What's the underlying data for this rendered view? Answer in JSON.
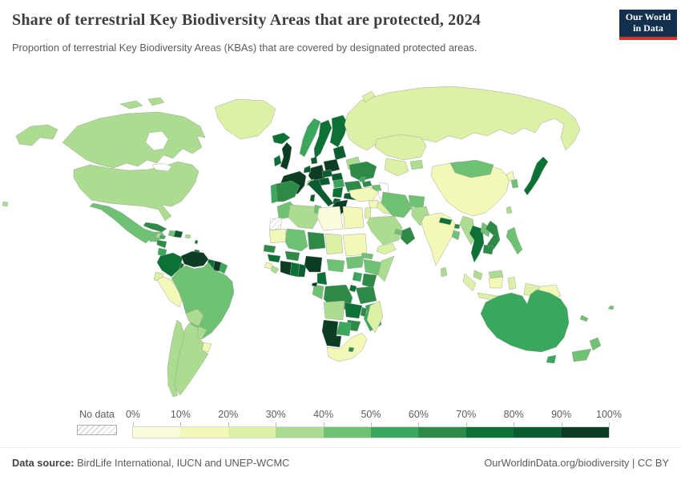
{
  "header": {
    "title": "Share of terrestrial Key Biodiversity Areas that are protected, 2024",
    "subtitle": "Proportion of terrestrial Key Biodiversity Areas (KBAs) that are covered by designated protected areas."
  },
  "logo": {
    "line1": "Our World",
    "line2": "in Data",
    "bg": "#12304e",
    "accent": "#d7352c"
  },
  "legend": {
    "no_data_label": "No data",
    "ticks": [
      "0%",
      "10%",
      "20%",
      "30%",
      "40%",
      "50%",
      "60%",
      "70%",
      "80%",
      "90%",
      "100%"
    ],
    "segment_colors": [
      "#fbfbdd",
      "#f3f8b7",
      "#dcf0a6",
      "#abdc90",
      "#6fc173",
      "#3aa85c",
      "#2e8b47",
      "#0c7134",
      "#0a5c31",
      "#0b3d22"
    ]
  },
  "footer": {
    "source_label": "Data source:",
    "source_text": " BirdLife International, IUCN and UNEP-WCMC",
    "right_text": "OurWorldinData.org/biodiversity | CC BY"
  },
  "chart_data": {
    "type": "heatmap",
    "subtype": "world-choropleth",
    "title": "Share of terrestrial Key Biodiversity Areas that are protected, 2024",
    "unit": "% of terrestrial KBAs covered by protected areas",
    "year": "2024",
    "legend_bins": [
      "0-10%",
      "10-20%",
      "20-30%",
      "30-40%",
      "40-50%",
      "50-60%",
      "60-70%",
      "70-80%",
      "80-90%",
      "90-100%"
    ],
    "no_data_label": "No data",
    "regions_columns": [
      "id",
      "name",
      "protected_share_band"
    ],
    "regions": [
      [
        "alaska",
        "Alaska (United States)",
        "30-40%"
      ],
      [
        "canada",
        "Canada",
        "30-40%"
      ],
      [
        "arctic-islands",
        "Canada (Arctic islands)",
        "30-40%"
      ],
      [
        "greenland",
        "Greenland",
        "20-30%"
      ],
      [
        "usa",
        "United States",
        "30-40%"
      ],
      [
        "hawaii",
        "Hawaii (United States)",
        "30-40%"
      ],
      [
        "mexico",
        "Mexico",
        "40-50%"
      ],
      [
        "belize",
        "Belize",
        "30-40%"
      ],
      [
        "guatemala",
        "Guatemala",
        "40-50%"
      ],
      [
        "honduras",
        "Honduras",
        "60-70%"
      ],
      [
        "nicaragua",
        "Nicaragua",
        "50-60%"
      ],
      [
        "costa-rica",
        "Costa Rica",
        "70-80%"
      ],
      [
        "panama",
        "Panama",
        "70-80%"
      ],
      [
        "cuba",
        "Cuba",
        "60-70%"
      ],
      [
        "jamaica",
        "Jamaica",
        "50-60%"
      ],
      [
        "haiti",
        "Haiti",
        "40-50%"
      ],
      [
        "dominican-republic",
        "Dominican Republic",
        "80-90%"
      ],
      [
        "puerto-rico",
        "Puerto Rico",
        "30-40%"
      ],
      [
        "lesser-antilles",
        "Lesser Antilles",
        "70-80%"
      ],
      [
        "trinidad",
        "Trinidad and Tobago",
        "70-80%"
      ],
      [
        "colombia",
        "Colombia",
        "70-80%"
      ],
      [
        "venezuela",
        "Venezuela",
        "90-100%"
      ],
      [
        "guyana",
        "Guyana",
        "70-80%"
      ],
      [
        "suriname",
        "Suriname",
        "90-100%"
      ],
      [
        "french-guiana",
        "French Guiana",
        "50-60%"
      ],
      [
        "ecuador",
        "Ecuador",
        "20-30%"
      ],
      [
        "peru",
        "Peru",
        "10-20%"
      ],
      [
        "brazil",
        "Brazil",
        "40-50%"
      ],
      [
        "bolivia",
        "Bolivia",
        "30-40%"
      ],
      [
        "paraguay",
        "Paraguay",
        "30-40%"
      ],
      [
        "uruguay",
        "Uruguay",
        "10-20%"
      ],
      [
        "argentina",
        "Argentina",
        "30-40%"
      ],
      [
        "chile",
        "Chile",
        "30-40%"
      ],
      [
        "iceland",
        "Iceland",
        "70-80%"
      ],
      [
        "uk",
        "United Kingdom",
        "90-100%"
      ],
      [
        "ireland",
        "Ireland",
        "70-80%"
      ],
      [
        "norway",
        "Norway",
        "50-60%"
      ],
      [
        "sweden",
        "Sweden",
        "70-80%"
      ],
      [
        "finland",
        "Finland",
        "70-80%"
      ],
      [
        "denmark",
        "Denmark",
        "80-90%"
      ],
      [
        "baltic-states",
        "Baltic states",
        "80-90%"
      ],
      [
        "belarus",
        "Belarus",
        "30-40%"
      ],
      [
        "poland",
        "Poland",
        "90-100%"
      ],
      [
        "germany",
        "Germany",
        "90-100%"
      ],
      [
        "netherlands",
        "Netherlands",
        "80-90%"
      ],
      [
        "france",
        "France",
        "90-100%"
      ],
      [
        "switzerland",
        "Switzerland",
        "30-40%"
      ],
      [
        "czechia",
        "Czechia",
        "80-90%"
      ],
      [
        "austria",
        "Austria",
        "80-90%"
      ],
      [
        "slovakia",
        "Slovakia",
        "80-90%"
      ],
      [
        "hungary",
        "Hungary",
        "50-60%"
      ],
      [
        "ukraine",
        "Ukraine",
        "60-70%"
      ],
      [
        "moldova",
        "Moldova",
        "50-60%"
      ],
      [
        "romania",
        "Romania",
        "60-70%"
      ],
      [
        "serbia",
        "Serbia",
        "70-80%"
      ],
      [
        "bulgaria",
        "Bulgaria",
        "80-90%"
      ],
      [
        "albania-macedonia",
        "Albania / North Macedonia",
        "80-90%"
      ],
      [
        "greece",
        "Greece",
        "90-100%"
      ],
      [
        "italy",
        "Italy",
        "80-90%"
      ],
      [
        "sicily",
        "Italy (Sicily)",
        "80-90%"
      ],
      [
        "sardinia",
        "Italy (Sardinia)",
        "80-90%"
      ],
      [
        "portugal",
        "Portugal",
        "50-60%"
      ],
      [
        "spain",
        "Spain",
        "60-70%"
      ],
      [
        "russia",
        "Russia",
        "20-30%"
      ],
      [
        "novaya-zemlya",
        "Russia (Novaya Zemlya)",
        "20-30%"
      ],
      [
        "kazakhstan",
        "Kazakhstan",
        "20-30%"
      ],
      [
        "central-asia",
        "Uzbekistan / Turkmenistan",
        "20-30%"
      ],
      [
        "kyrgyz-tajik",
        "Kyrgyzstan / Tajikistan",
        "30-40%"
      ],
      [
        "georgia",
        "Georgia",
        "60-70%"
      ],
      [
        "armenia-azerbaijan",
        "Armenia / Azerbaijan",
        "40-50%"
      ],
      [
        "turkey",
        "Turkey",
        "10-20%"
      ],
      [
        "syria",
        "Syria",
        "10-20%"
      ],
      [
        "levant",
        "Israel / Jordan",
        "20-30%"
      ],
      [
        "iraq",
        "Iraq",
        "20-30%"
      ],
      [
        "saudi-arabia",
        "Saudi Arabia",
        "30-40%"
      ],
      [
        "yemen",
        "Yemen",
        "20-30%"
      ],
      [
        "oman",
        "Oman",
        "60-70%"
      ],
      [
        "uae",
        "United Arab Emirates",
        "40-50%"
      ],
      [
        "iran",
        "Iran",
        "40-50%"
      ],
      [
        "afghanistan",
        "Afghanistan",
        "40-50%"
      ],
      [
        "pakistan",
        "Pakistan",
        "30-40%"
      ],
      [
        "india",
        "India",
        "10-20%"
      ],
      [
        "nepal",
        "Nepal",
        "70-80%"
      ],
      [
        "bhutan",
        "Bhutan",
        "60-70%"
      ],
      [
        "bangladesh",
        "Bangladesh",
        "40-50%"
      ],
      [
        "sri-lanka",
        "Sri Lanka",
        "30-40%"
      ],
      [
        "china",
        "China",
        "10-20%"
      ],
      [
        "mongolia",
        "Mongolia",
        "40-50%"
      ],
      [
        "north-korea",
        "North Korea",
        "10-20%"
      ],
      [
        "south-korea",
        "South Korea",
        "40-50%"
      ],
      [
        "japan",
        "Japan",
        "70-80%"
      ],
      [
        "taiwan",
        "Taiwan",
        "30-40%"
      ],
      [
        "myanmar",
        "Myanmar",
        "30-40%"
      ],
      [
        "thailand",
        "Thailand",
        "70-80%"
      ],
      [
        "laos",
        "Laos",
        "40-50%"
      ],
      [
        "vietnam",
        "Vietnam",
        "60-70%"
      ],
      [
        "cambodia",
        "Cambodia",
        "60-70%"
      ],
      [
        "malaysia",
        "Malaysia (peninsula)",
        "30-40%"
      ],
      [
        "borneo-malaysia",
        "Malaysia (Borneo)",
        "30-40%"
      ],
      [
        "sumatra",
        "Indonesia (Sumatra)",
        "20-30%"
      ],
      [
        "java",
        "Indonesia (Java)",
        "20-30%"
      ],
      [
        "kalimantan",
        "Indonesia (Kalimantan)",
        "10-20%"
      ],
      [
        "sulawesi",
        "Indonesia (Sulawesi)",
        "20-30%"
      ],
      [
        "timor",
        "Timor-Leste",
        "0-10%"
      ],
      [
        "west-papua",
        "Indonesia (Papua)",
        "20-30%"
      ],
      [
        "papua-new-guinea",
        "Papua New Guinea",
        "10-20%"
      ],
      [
        "philippines",
        "Philippines",
        "40-50%"
      ],
      [
        "morocco",
        "Morocco",
        "40-50%"
      ],
      [
        "western-sahara",
        "Western Sahara",
        "No data"
      ],
      [
        "algeria",
        "Algeria",
        "30-40%"
      ],
      [
        "tunisia",
        "Tunisia",
        "40-50%"
      ],
      [
        "libya",
        "Libya",
        "0-10%"
      ],
      [
        "egypt",
        "Egypt",
        "10-20%"
      ],
      [
        "mauritania",
        "Mauritania",
        "10-20%"
      ],
      [
        "mali",
        "Mali",
        "40-50%"
      ],
      [
        "niger",
        "Niger",
        "60-70%"
      ],
      [
        "chad",
        "Chad",
        "20-30%"
      ],
      [
        "sudan",
        "Sudan",
        "10-20%"
      ],
      [
        "eritrea",
        "Eritrea",
        "40-50%"
      ],
      [
        "senegal",
        "Senegal",
        "60-70%"
      ],
      [
        "guinea",
        "Guinea",
        "70-80%"
      ],
      [
        "sierra-leone",
        "Sierra Leone",
        "10-20%"
      ],
      [
        "liberia",
        "Liberia",
        "30-40%"
      ],
      [
        "ivory-coast",
        "Côte d'Ivoire",
        "90-100%"
      ],
      [
        "ghana",
        "Ghana",
        "70-80%"
      ],
      [
        "togo-benin",
        "Togo / Benin",
        "80-90%"
      ],
      [
        "burkina-faso",
        "Burkina Faso",
        "60-70%"
      ],
      [
        "nigeria",
        "Nigeria",
        "90-100%"
      ],
      [
        "cameroon",
        "Cameroon",
        "70-80%"
      ],
      [
        "central-african-republic",
        "Central African Republic",
        "40-50%"
      ],
      [
        "south-sudan",
        "South Sudan",
        "40-50%"
      ],
      [
        "ethiopia",
        "Ethiopia",
        "40-50%"
      ],
      [
        "somalia",
        "Somalia",
        "30-40%"
      ],
      [
        "kenya",
        "Kenya",
        "60-70%"
      ],
      [
        "uganda",
        "Uganda",
        "50-60%"
      ],
      [
        "drc",
        "Democratic Republic of Congo",
        "60-70%"
      ],
      [
        "congo-gabon",
        "Congo / Gabon",
        "40-50%"
      ],
      [
        "equatorial-guinea",
        "Equatorial Guinea",
        "90-100%"
      ],
      [
        "tanzania",
        "Tanzania",
        "60-70%"
      ],
      [
        "rwanda-burundi",
        "Rwanda / Burundi",
        "70-80%"
      ],
      [
        "angola",
        "Angola",
        "30-40%"
      ],
      [
        "zambia",
        "Zambia",
        "70-80%"
      ],
      [
        "malawi",
        "Malawi",
        "60-70%"
      ],
      [
        "mozambique",
        "Mozambique",
        "50-60%"
      ],
      [
        "zimbabwe",
        "Zimbabwe",
        "60-70%"
      ],
      [
        "botswana",
        "Botswana",
        "50-60%"
      ],
      [
        "namibia",
        "Namibia",
        "90-100%"
      ],
      [
        "south-africa",
        "South Africa",
        "10-20%"
      ],
      [
        "lesotho",
        "Lesotho",
        "60-70%"
      ],
      [
        "madagascar",
        "Madagascar",
        "20-30%"
      ],
      [
        "australia",
        "Australia",
        "50-60%"
      ],
      [
        "tasmania",
        "Australia (Tasmania)",
        "50-60%"
      ],
      [
        "new-zealand-north",
        "New Zealand (North Island)",
        "40-50%"
      ],
      [
        "new-zealand-south",
        "New Zealand (South Island)",
        "40-50%"
      ],
      [
        "new-caledonia",
        "New Caledonia",
        "40-50%"
      ],
      [
        "fiji",
        "Fiji",
        "40-50%"
      ]
    ]
  }
}
